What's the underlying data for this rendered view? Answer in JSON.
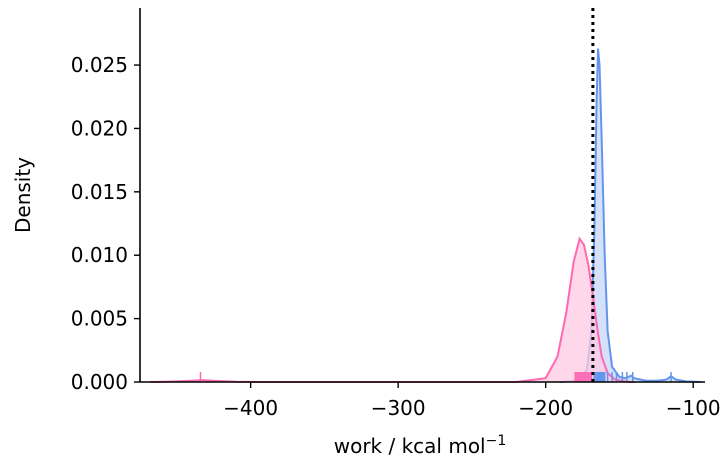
{
  "chart_data": {
    "type": "area",
    "xlabel": "work / kcal mol",
    "xlabel_superscript": "−1",
    "ylabel": "Density",
    "xlim": [
      -475,
      -92
    ],
    "ylim": [
      0,
      0.0295
    ],
    "x_ticks": [
      -400,
      -300,
      -200,
      -100
    ],
    "x_tick_labels": [
      "−400",
      "−300",
      "−200",
      "−100"
    ],
    "y_ticks": [
      0,
      0.005,
      0.01,
      0.015,
      0.02,
      0.025
    ],
    "y_tick_labels": [
      "0.000",
      "0.005",
      "0.010",
      "0.015",
      "0.020",
      "0.025"
    ],
    "grid": false,
    "reference_line": {
      "x": -168,
      "style": "dotted",
      "color": "#000000"
    },
    "series": [
      {
        "color": "#6495ed",
        "fill": "#c6d7f7",
        "points": [
          [
            -190,
            0
          ],
          [
            -178,
            0.0001
          ],
          [
            -172,
            0.001
          ],
          [
            -169,
            0.004
          ],
          [
            -167,
            0.012
          ],
          [
            -165.5,
            0.022
          ],
          [
            -164.5,
            0.0263
          ],
          [
            -163.5,
            0.025
          ],
          [
            -162,
            0.019
          ],
          [
            -160,
            0.01
          ],
          [
            -158,
            0.004
          ],
          [
            -155,
            0.0012
          ],
          [
            -150,
            0.0004
          ],
          [
            -146,
            0.0003
          ],
          [
            -142,
            0.0005
          ],
          [
            -140,
            0.0003
          ],
          [
            -132,
            0.0001
          ],
          [
            -124,
            0.0001
          ],
          [
            -118,
            0.0002
          ],
          [
            -115,
            0.00045
          ],
          [
            -112,
            0.0002
          ],
          [
            -105,
            5e-05
          ],
          [
            -95,
            0
          ]
        ],
        "rug": [
          -167,
          -166,
          -165,
          -164,
          -163,
          -162,
          -161,
          -160,
          -158,
          -155,
          -152,
          -148,
          -145,
          -141,
          -115
        ]
      },
      {
        "color": "#ff69b4",
        "fill": "#ffc9e3",
        "points": [
          [
            -468,
            0
          ],
          [
            -455,
            3e-05
          ],
          [
            -440,
            0.0001
          ],
          [
            -433,
            0.00015
          ],
          [
            -425,
            0.0001
          ],
          [
            -410,
            2e-05
          ],
          [
            -395,
            0
          ],
          [
            -300,
            0
          ],
          [
            -220,
            0
          ],
          [
            -200,
            0.0003
          ],
          [
            -192,
            0.002
          ],
          [
            -186,
            0.0055
          ],
          [
            -181,
            0.0095
          ],
          [
            -177,
            0.0113
          ],
          [
            -174,
            0.0108
          ],
          [
            -171,
            0.0092
          ],
          [
            -168,
            0.0068
          ],
          [
            -165,
            0.0042
          ],
          [
            -162,
            0.002
          ],
          [
            -158,
            0.0007
          ],
          [
            -153,
            0.0002
          ],
          [
            -145,
            2e-05
          ],
          [
            -140,
            0
          ]
        ],
        "rug": [
          -434,
          -180,
          -179,
          -178,
          -177,
          -176,
          -175,
          -174,
          -173,
          -172,
          -171,
          -170,
          -169
        ]
      }
    ]
  }
}
